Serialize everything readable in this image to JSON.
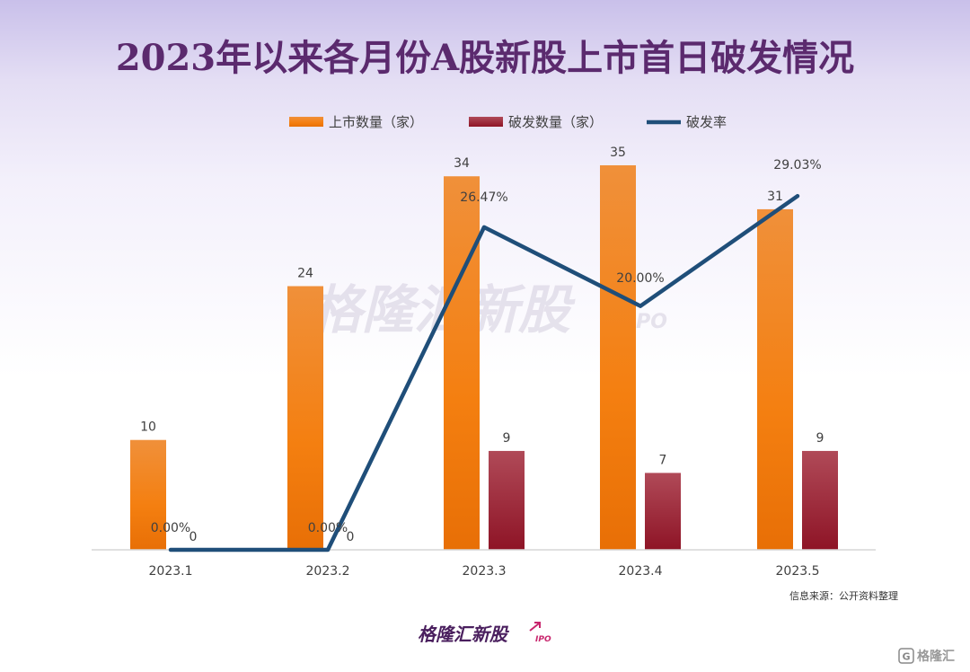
{
  "chart_data": {
    "type": "bar",
    "title": "2023年以来各月份A股新股上市首日破发情况",
    "categories": [
      "2023.1",
      "2023.2",
      "2023.3",
      "2023.4",
      "2023.5"
    ],
    "series": [
      {
        "name": "上市数量（家）",
        "type": "bar",
        "color": "#f07a10",
        "values": [
          10,
          24,
          34,
          35,
          31
        ]
      },
      {
        "name": "破发数量（家）",
        "type": "bar",
        "color": "#9b1c2e",
        "values": [
          0,
          0,
          9,
          7,
          9
        ]
      },
      {
        "name": "破发率",
        "type": "line",
        "color": "#1f4e79",
        "values": [
          0.0,
          0.0,
          26.47,
          20.0,
          29.03
        ]
      }
    ],
    "bar_labels": [
      [
        "10",
        "24",
        "34",
        "35",
        "31"
      ],
      [
        "0",
        "0",
        "9",
        "7",
        "9"
      ]
    ],
    "line_labels": [
      "0.00%",
      "0.00%",
      "26.47%",
      "20.00%",
      "29.03%"
    ],
    "ylim_bars": [
      0,
      35
    ],
    "ylim_rate": [
      0,
      30
    ],
    "legend_position": "top-center",
    "grid": false,
    "xlabel": "",
    "ylabel": ""
  },
  "source_note": "信息来源：公开资料整理",
  "watermark": "格隆汇新股",
  "watermark_sub": "IPO",
  "footer_logo": "格隆汇新股",
  "footer_logo_sub": "IPO",
  "corner_badge": "格隆汇"
}
